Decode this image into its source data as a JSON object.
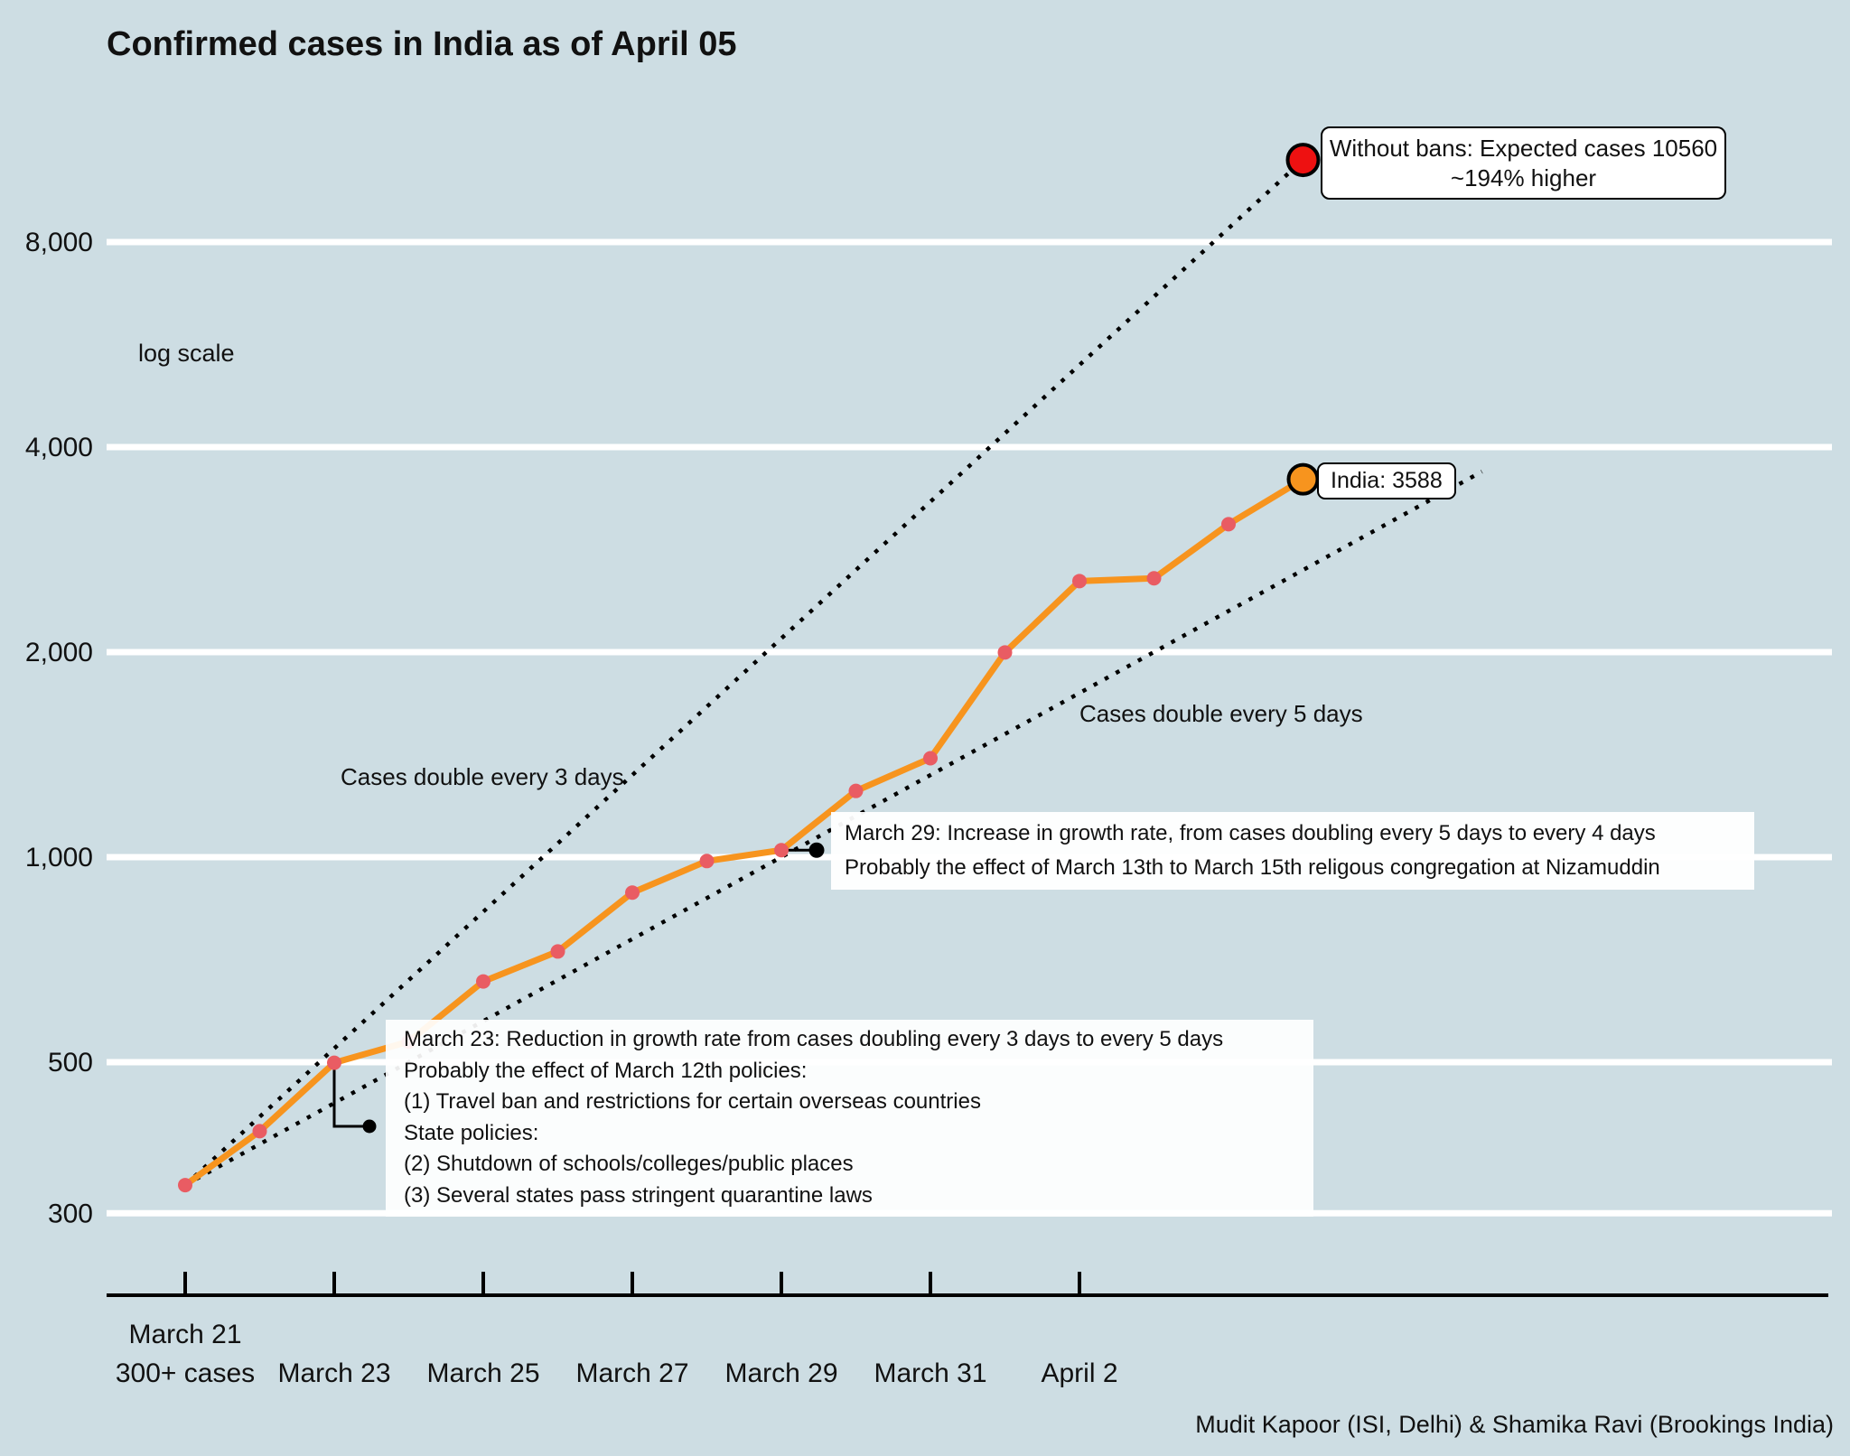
{
  "title": "Confirmed cases in India as of April 05",
  "scale_note": "log scale",
  "attribution": "Mudit Kapoor (ISI, Delhi) & Shamika Ravi (Brookings India)",
  "colors": {
    "background": "#cddde3",
    "gridline": "#ffffff",
    "india_line": "#f7941e",
    "point_dot": "#e95c63",
    "projection_dot": "#ee1111",
    "india_current_dot": "#f7941e",
    "reference_line": "#000000",
    "axis": "#000000"
  },
  "annotations": {
    "double3_label": "Cases double every 3 days",
    "double5_label": "Cases double every 5 days",
    "without_bans": {
      "line1": "Without bans: Expected cases 10560",
      "line2": "~194% higher"
    },
    "india_label": "India: 3588",
    "march29": {
      "line1": "March 29: Increase in growth rate, from cases doubling every 5 days to every 4 days",
      "line2": "Probably the effect of March 13th to March 15th religous congregation at Nizamuddin"
    },
    "march23": {
      "lines": [
        "March 23: Reduction in growth rate from cases doubling every 3 days to every 5 days",
        "Probably the effect of March 12th policies:",
        "(1) Travel ban and restrictions for certain overseas countries",
        "State policies:",
        "(2) Shutdown of schools/colleges/public places",
        "(3) Several states pass stringent quarantine laws"
      ]
    }
  },
  "chart_data": {
    "type": "line",
    "title": "Confirmed cases in India as of April 05",
    "yscale": "log",
    "ylim": [
      260,
      12000
    ],
    "grid": "horizontal-only",
    "yticks": [
      {
        "value": 8000,
        "label": "8,000"
      },
      {
        "value": 4000,
        "label": "4,000"
      },
      {
        "value": 2000,
        "label": "2,000"
      },
      {
        "value": 1000,
        "label": "1,000"
      },
      {
        "value": 500,
        "label": "500"
      },
      {
        "value": 300,
        "label": "300"
      }
    ],
    "x_ticks": [
      {
        "day": 0,
        "label": "March 21",
        "sublabel": "300+ cases"
      },
      {
        "day": 2,
        "label": "March 23"
      },
      {
        "day": 4,
        "label": "March 25"
      },
      {
        "day": 6,
        "label": "March 27"
      },
      {
        "day": 8,
        "label": "March 29"
      },
      {
        "day": 10,
        "label": "March 31"
      },
      {
        "day": 12,
        "label": "April 2"
      }
    ],
    "series": [
      {
        "name": "India confirmed cases",
        "dates": [
          "March 21",
          "March 22",
          "March 23",
          "March 24",
          "March 25",
          "March 26",
          "March 27",
          "March 28",
          "March 29",
          "March 30",
          "March 31",
          "April 1",
          "April 2",
          "April 3",
          "April 4",
          "April 5"
        ],
        "values": [
          330,
          396,
          499,
          536,
          657,
          727,
          887,
          987,
          1024,
          1251,
          1397,
          1998,
          2543,
          2567,
          3082,
          3588
        ]
      }
    ],
    "reference_lines": [
      {
        "name": "Cases double every 3 days",
        "start_day": 0,
        "start_value": 330,
        "doubling_days": 3,
        "end_day": 15
      },
      {
        "name": "Cases double every 5 days",
        "start_day": 0,
        "start_value": 330,
        "doubling_days": 5,
        "end_day": 17.4
      }
    ],
    "projection_point": {
      "day": 15,
      "value": 10560,
      "note": "Without bans: Expected cases 10560 ~194% higher"
    },
    "current_point": {
      "day": 15,
      "value": 3588,
      "note": "India: 3588"
    }
  }
}
